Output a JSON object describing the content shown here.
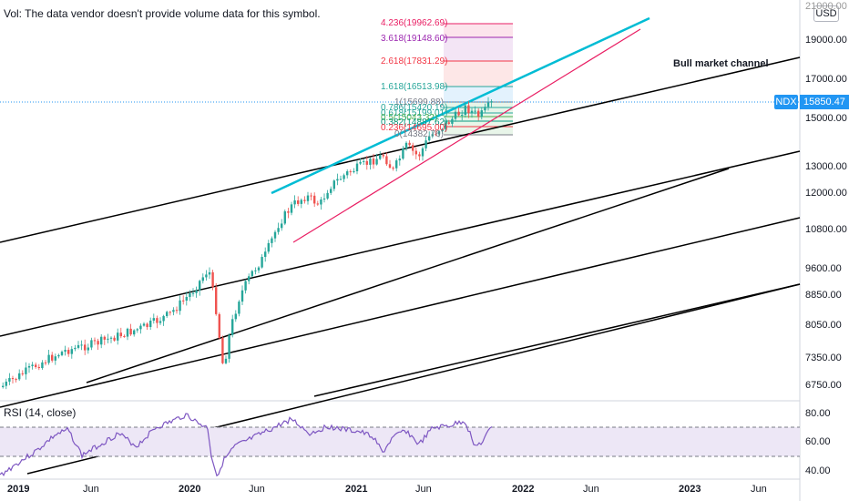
{
  "note": {
    "volume": "Vol: The data vendor doesn't provide volume data for this symbol."
  },
  "rsi": {
    "label": "RSI (14, close)",
    "upper_band": 70,
    "lower_band": 50
  },
  "axis": {
    "currency": "USD",
    "top_cut": "21000.00",
    "price_labels": [
      "19000.00",
      "17000.00",
      "15000.00",
      "13000.00",
      "12000.00",
      "10800.00",
      "9600.00",
      "8850.00",
      "8050.00",
      "7350.00",
      "6750.00"
    ],
    "rsi_labels": [
      "80.00",
      "60.00",
      "40.00"
    ],
    "time_labels": [
      "2019",
      "Jun",
      "2020",
      "Jun",
      "2021",
      "Jun",
      "2022",
      "Jun",
      "2023",
      "Jun"
    ]
  },
  "ticker": {
    "symbol": "NDX",
    "price": "15850.47",
    "color": "#2196f3"
  },
  "annotations": {
    "channel": "Bull market channel"
  },
  "fib": [
    {
      "text": "4.236(19962.69)",
      "color": "#e91e63"
    },
    {
      "text": "3.618(19148.60)",
      "color": "#9c27b0"
    },
    {
      "text": "2.618(17831.29)",
      "color": "#f23645"
    },
    {
      "text": "1.618(16513.98)",
      "color": "#26a69a"
    },
    {
      "text": "1(15699.88)",
      "color": "#787b86"
    },
    {
      "text": "0.786(15420.19)",
      "color": "#26a69a"
    },
    {
      "text": "0.618(15199.01)",
      "color": "#26a69a"
    },
    {
      "text": "0.5(15043.32)",
      "color": "#4caf50"
    },
    {
      "text": "0.382(14887.62)",
      "color": "#089981"
    },
    {
      "text": "0.236(14695.00)",
      "color": "#f23645"
    },
    {
      "text": "0(14382.76)",
      "color": "#787b86"
    }
  ],
  "colors": {
    "up": "#26a69a",
    "down": "#ef5350",
    "rsi": "#7e57c2",
    "wedge_upper": "#00bcd4",
    "wedge_lower": "#e91e63",
    "channel": "#000000"
  }
}
